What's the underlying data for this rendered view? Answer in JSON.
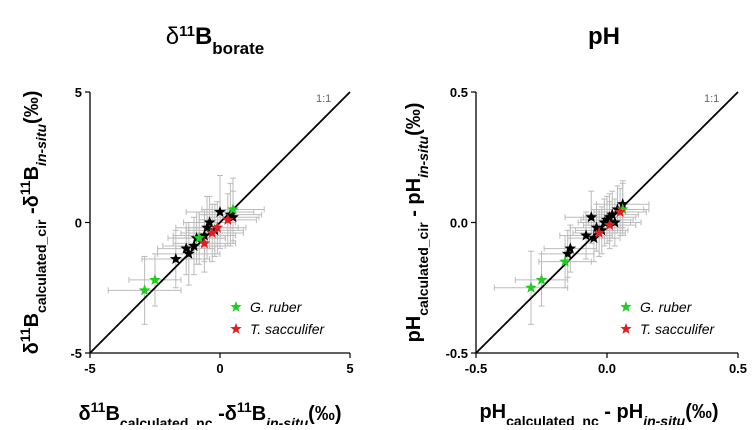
{
  "colors": {
    "g_ruber": "#22cc22",
    "t_sacculifer": "#e02020",
    "other": "#000000",
    "errorbar": "#bbbbbb",
    "line": "#000000"
  },
  "chart_data": [
    {
      "type": "scatter",
      "title": {
        "base": "δ",
        "sup": "11",
        "main": "B",
        "sub": "borate"
      },
      "xlabel": [
        {
          "t": "δ",
          "s": "n"
        },
        {
          "t": "11",
          "s": "sup"
        },
        {
          "t": "B",
          "s": "n"
        },
        {
          "t": "calculated_nc",
          "s": "sub"
        },
        {
          "t": " -δ",
          "s": "n"
        },
        {
          "t": "11",
          "s": "sup"
        },
        {
          "t": "B",
          "s": "n"
        },
        {
          "t": "in-situ",
          "s": "subi"
        },
        {
          "t": "(‰)",
          "s": "n"
        }
      ],
      "ylabel": [
        {
          "t": "δ",
          "s": "n"
        },
        {
          "t": "11",
          "s": "sup"
        },
        {
          "t": "B",
          "s": "n"
        },
        {
          "t": "calculated_cir",
          "s": "sub"
        },
        {
          "t": " -δ",
          "s": "n"
        },
        {
          "t": "11",
          "s": "sup"
        },
        {
          "t": "B",
          "s": "n"
        },
        {
          "t": "in-situ",
          "s": "subi"
        },
        {
          "t": "(‰)",
          "s": "n"
        }
      ],
      "xlim": [
        -5,
        5
      ],
      "ylim": [
        -5,
        5
      ],
      "xticks": [
        -5,
        0,
        5
      ],
      "yticks": [
        -5,
        0,
        5
      ],
      "xtick_labels": [
        "-5",
        "0",
        "5"
      ],
      "ytick_labels": [
        "-5",
        "0",
        "5"
      ],
      "reference_line": {
        "label": "1:1"
      },
      "legend": {
        "position": "bottom-right",
        "entries": [
          "G. ruber",
          "T. sacculifer"
        ]
      },
      "series": [
        {
          "name": "G. ruber",
          "color": "green",
          "points": [
            {
              "x": -2.9,
              "y": -2.6,
              "xerr": 1.4,
              "yerr": 1.3
            },
            {
              "x": -2.5,
              "y": -2.2,
              "xerr": 1.0,
              "yerr": 1.0
            },
            {
              "x": -0.8,
              "y": -0.6,
              "xerr": 1.0,
              "yerr": 1.0
            },
            {
              "x": 0.5,
              "y": 0.5,
              "xerr": 1.2,
              "yerr": 1.2
            }
          ]
        },
        {
          "name": "T. sacculifer",
          "color": "red",
          "points": [
            {
              "x": -0.6,
              "y": -0.8,
              "xerr": 1.2,
              "yerr": 1.1
            },
            {
              "x": -0.3,
              "y": -0.4,
              "xerr": 1.2,
              "yerr": 1.1
            },
            {
              "x": -0.1,
              "y": -0.2,
              "xerr": 1.1,
              "yerr": 1.0
            },
            {
              "x": 0.3,
              "y": 0.1,
              "xerr": 1.1,
              "yerr": 1.0
            }
          ]
        },
        {
          "name": "",
          "color": "black",
          "points": [
            {
              "x": -1.7,
              "y": -1.4,
              "xerr": 1.3,
              "yerr": 1.1
            },
            {
              "x": -1.2,
              "y": -1.2,
              "xerr": 1.2,
              "yerr": 1.2
            },
            {
              "x": -1.0,
              "y": -0.9,
              "xerr": 1.2,
              "yerr": 1.1
            },
            {
              "x": -0.9,
              "y": -0.6,
              "xerr": 1.1,
              "yerr": 1.0
            },
            {
              "x": -0.6,
              "y": -0.5,
              "xerr": 1.2,
              "yerr": 1.0
            },
            {
              "x": -0.5,
              "y": -0.2,
              "xerr": 1.2,
              "yerr": 1.2
            },
            {
              "x": -0.4,
              "y": 0.0,
              "xerr": 1.0,
              "yerr": 1.0
            },
            {
              "x": -0.2,
              "y": -0.3,
              "xerr": 1.1,
              "yerr": 1.0
            },
            {
              "x": 0.0,
              "y": 0.4,
              "xerr": 1.3,
              "yerr": 1.4
            },
            {
              "x": 0.4,
              "y": 0.3,
              "xerr": 1.2,
              "yerr": 1.2
            },
            {
              "x": 0.5,
              "y": 0.2,
              "xerr": 1.0,
              "yerr": 1.0
            },
            {
              "x": -1.3,
              "y": -1.0,
              "xerr": 1.1,
              "yerr": 1.0
            }
          ]
        }
      ]
    },
    {
      "type": "scatter",
      "title": {
        "base": "pH",
        "sup": "",
        "main": "",
        "sub": ""
      },
      "xlabel": [
        {
          "t": "pH",
          "s": "n"
        },
        {
          "t": "calculated_nc",
          "s": "sub"
        },
        {
          "t": " - pH",
          "s": "n"
        },
        {
          "t": "in-situ",
          "s": "subi"
        },
        {
          "t": "(‰)",
          "s": "n"
        }
      ],
      "ylabel": [
        {
          "t": "pH",
          "s": "n"
        },
        {
          "t": "calculated_cir",
          "s": "sub"
        },
        {
          "t": " - pH",
          "s": "n"
        },
        {
          "t": "in-situ",
          "s": "subi"
        },
        {
          "t": "(‰)",
          "s": "n"
        }
      ],
      "xlim": [
        -0.5,
        0.5
      ],
      "ylim": [
        -0.5,
        0.5
      ],
      "xticks": [
        -0.5,
        0,
        0.5
      ],
      "yticks": [
        -0.5,
        0,
        0.5
      ],
      "xtick_labels": [
        "-0.5",
        "0.0",
        "0.5"
      ],
      "ytick_labels": [
        "-0.5",
        "0.0",
        "0.5"
      ],
      "reference_line": {
        "label": "1:1"
      },
      "legend": {
        "position": "bottom-right",
        "entries": [
          "G. ruber",
          "T. sacculifer"
        ]
      },
      "series": [
        {
          "name": "G. ruber",
          "color": "green",
          "points": [
            {
              "x": -0.29,
              "y": -0.25,
              "xerr": 0.14,
              "yerr": 0.14
            },
            {
              "x": -0.25,
              "y": -0.22,
              "xerr": 0.1,
              "yerr": 0.1
            },
            {
              "x": -0.16,
              "y": -0.15,
              "xerr": 0.1,
              "yerr": 0.1
            },
            {
              "x": 0.06,
              "y": 0.05,
              "xerr": 0.1,
              "yerr": 0.1
            }
          ]
        },
        {
          "name": "T. sacculifer",
          "color": "red",
          "points": [
            {
              "x": -0.03,
              "y": -0.04,
              "xerr": 0.1,
              "yerr": 0.09
            },
            {
              "x": 0.01,
              "y": -0.01,
              "xerr": 0.1,
              "yerr": 0.09
            },
            {
              "x": 0.05,
              "y": 0.04,
              "xerr": 0.1,
              "yerr": 0.09
            }
          ]
        },
        {
          "name": "",
          "color": "black",
          "points": [
            {
              "x": -0.15,
              "y": -0.12,
              "xerr": 0.1,
              "yerr": 0.09
            },
            {
              "x": -0.14,
              "y": -0.1,
              "xerr": 0.1,
              "yerr": 0.09
            },
            {
              "x": -0.08,
              "y": -0.05,
              "xerr": 0.1,
              "yerr": 0.09
            },
            {
              "x": -0.06,
              "y": 0.02,
              "xerr": 0.1,
              "yerr": 0.1
            },
            {
              "x": -0.05,
              "y": -0.06,
              "xerr": 0.1,
              "yerr": 0.09
            },
            {
              "x": -0.02,
              "y": -0.03,
              "xerr": 0.1,
              "yerr": 0.09
            },
            {
              "x": -0.01,
              "y": 0.0,
              "xerr": 0.1,
              "yerr": 0.09
            },
            {
              "x": 0.0,
              "y": 0.01,
              "xerr": 0.1,
              "yerr": 0.09
            },
            {
              "x": 0.02,
              "y": 0.03,
              "xerr": 0.1,
              "yerr": 0.09
            },
            {
              "x": 0.03,
              "y": 0.0,
              "xerr": 0.1,
              "yerr": 0.09
            },
            {
              "x": 0.04,
              "y": 0.05,
              "xerr": 0.1,
              "yerr": 0.09
            },
            {
              "x": 0.06,
              "y": 0.07,
              "xerr": 0.1,
              "yerr": 0.09
            },
            {
              "x": -0.04,
              "y": -0.02,
              "xerr": 0.1,
              "yerr": 0.09
            },
            {
              "x": 0.01,
              "y": 0.02,
              "xerr": 0.1,
              "yerr": 0.09
            }
          ]
        }
      ]
    }
  ]
}
